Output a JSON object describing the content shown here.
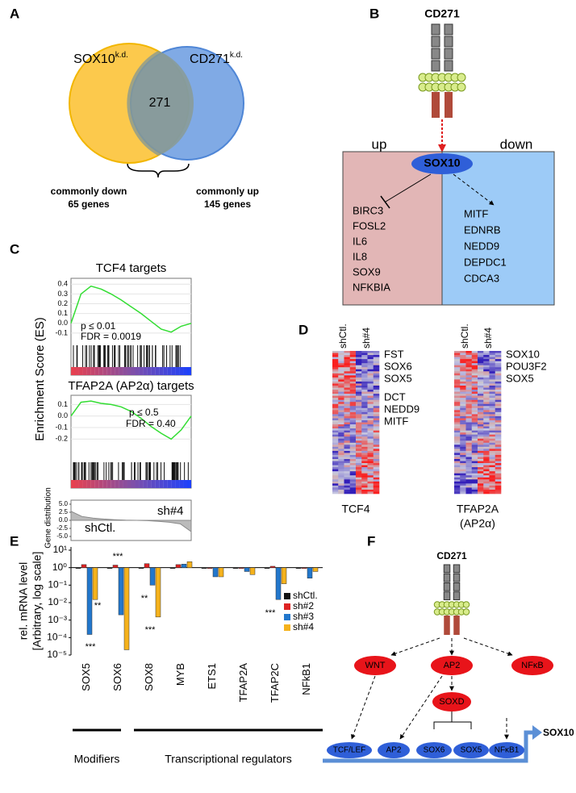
{
  "panel_labels": [
    "A",
    "B",
    "C",
    "D",
    "E",
    "F"
  ],
  "panel_a": {
    "left_label": "SOX10",
    "left_sup": "k.d.",
    "right_label": "CD271",
    "right_sup": "k.d.",
    "overlap": "271",
    "down_title": "commonly down",
    "down_count": "65 genes",
    "up_title": "commonly up",
    "up_count": "145 genes"
  },
  "panel_b": {
    "receptor": "CD271",
    "up": "up",
    "down": "down",
    "center": "SOX10",
    "up_genes": [
      "BIRC3",
      "FOSL2",
      "IL6",
      "IL8",
      "SOX9",
      "NFKBIA"
    ],
    "down_genes": [
      "MITF",
      "EDNRB",
      "NEDD9",
      "DEPDC1",
      "CDCA3"
    ]
  },
  "panel_c": {
    "y_label": "Enrichment Score (ES)",
    "distribution_label": "Gene distribution"
  },
  "panel_d": {
    "heatmaps": [
      {
        "columns": [
          "shCtl.",
          "sh#4"
        ],
        "genes": [
          {
            "name": "FST",
            "color": "#000000"
          },
          {
            "name": "SOX6",
            "color": "#e02020"
          },
          {
            "name": "SOX5",
            "color": "#e02020"
          },
          {
            "name": "DCT",
            "color": "#000000"
          },
          {
            "name": "NEDD9",
            "color": "#e02020"
          },
          {
            "name": "MITF",
            "color": "#e02020"
          }
        ],
        "label": [
          "TCF4"
        ]
      },
      {
        "columns": [
          "shCtl.",
          "sh#4"
        ],
        "genes": [
          {
            "name": "SOX10",
            "color": "#e02020"
          },
          {
            "name": "POU3F2",
            "color": "#000000"
          },
          {
            "name": "SOX5",
            "color": "#e02020"
          }
        ],
        "label": [
          "TFAP2A",
          "(AP2α)"
        ]
      }
    ]
  },
  "panel_e": {
    "groups": [
      "Modifiers",
      "Transcriptional regulators"
    ],
    "significance": [
      "***",
      "**",
      "***",
      "**",
      "***",
      "***"
    ]
  },
  "panel_f": {
    "receptor": "CD271",
    "upstream": [
      "WNT",
      "AP2",
      "NFκB"
    ],
    "soxd": "SOXD",
    "targets": [
      "TCF/LEF",
      "AP2",
      "SOX6",
      "SOX5",
      "NFκB1"
    ],
    "output": "SOX10"
  },
  "chart_data": [
    {
      "type": "line",
      "title": "TCF4 targets",
      "annotations": [
        "p ≤ 0.01",
        "FDR = 0.0019"
      ],
      "annotation_color": "#e03030",
      "color": "#33dd33",
      "values": [
        0,
        0.3,
        0.38,
        0.35,
        0.3,
        0.24,
        0.17,
        0.1,
        0.02,
        -0.06,
        -0.09,
        -0.03,
        0
      ],
      "ylim": [
        -0.2,
        0.46
      ],
      "yticks": [
        0.4,
        0.3,
        0.2,
        0.1,
        {
          "value": 0,
          "label": "0.0"
        },
        -0.1
      ]
    },
    {
      "type": "line",
      "title": "TFAP2A (AP2α) targets",
      "annotations": [
        "p ≤ 0.5",
        "FDR = 0.40"
      ],
      "annotation_color": "#3377cc",
      "color": "#33dd33",
      "values": [
        0,
        0.12,
        0.13,
        0.11,
        0.1,
        0.08,
        0.04,
        -0.02,
        -0.09,
        -0.15,
        -0.2,
        -0.12,
        0
      ],
      "ylim": [
        -0.38,
        0.18
      ],
      "yticks": [
        0.1,
        {
          "value": 0,
          "label": "0.0"
        },
        -0.1,
        -0.2
      ]
    },
    {
      "type": "area",
      "series_labels": [
        {
          "name": "sh#4",
          "color": "#3377cc"
        },
        {
          "name": "shCtl.",
          "color": "#e02020"
        }
      ],
      "color": "#bbbbbb",
      "values": [
        2.8,
        1.2,
        0.7,
        0.4,
        0.2,
        0.05,
        0,
        -0.1,
        -0.3,
        -0.6,
        -1.1,
        -3.5
      ],
      "ylim": [
        -5,
        5
      ],
      "yticks": [
        {
          "value": 5,
          "label": "5.0"
        },
        2.5,
        {
          "value": 0,
          "label": "0.0"
        },
        -2.5,
        {
          "value": -5,
          "label": "-5.0"
        }
      ]
    },
    {
      "type": "bar",
      "y_label": [
        "rel. mRNA level",
        "[Arbitrary, log scale]"
      ],
      "log_scale": true,
      "categories": [
        "SOX5",
        "SOX6",
        "SOX8",
        "MYB",
        "ETS1",
        "TFAP2A",
        "TFAP2C",
        "NFkB1"
      ],
      "series": [
        {
          "name": "shCtl.",
          "color": "#111111",
          "values": [
            1,
            1,
            1,
            1,
            1,
            1,
            1,
            1
          ]
        },
        {
          "name": "sh#2",
          "color": "#dd2222",
          "values": [
            1.5,
            1.4,
            1.7,
            1.5,
            1,
            1,
            1.2,
            1
          ]
        },
        {
          "name": "sh#3",
          "color": "#2277cc",
          "values": [
            0.00015,
            0.002,
            0.1,
            1.6,
            0.3,
            0.6,
            0.015,
            0.25
          ]
        },
        {
          "name": "sh#4",
          "color": "#f5b21c",
          "values": [
            0.015,
            2e-05,
            0.0015,
            2.2,
            0.3,
            0.4,
            0.12,
            0.6
          ]
        }
      ],
      "ylim": [
        1e-05,
        10
      ],
      "yticks": [
        {
          "value": 10,
          "label": "10¹"
        },
        {
          "value": 1,
          "label": "10⁰"
        },
        {
          "value": 0.1,
          "label": "10⁻¹"
        },
        {
          "value": 0.01,
          "label": "10⁻²"
        },
        {
          "value": 0.001,
          "label": "10⁻³"
        },
        {
          "value": 0.0001,
          "label": "10⁻⁴"
        },
        {
          "value": 1e-05,
          "label": "10⁻⁵"
        }
      ]
    }
  ]
}
